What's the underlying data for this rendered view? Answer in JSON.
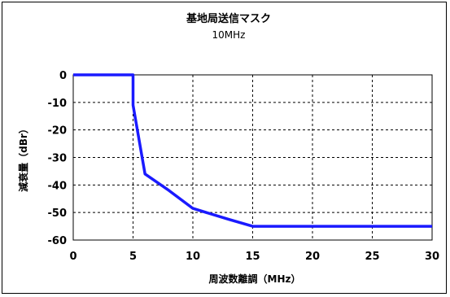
{
  "chart_data": {
    "type": "line",
    "title": "基地局送信マスク",
    "subtitle": "10MHz",
    "xlabel": "周波数離調（MHz）",
    "ylabel": "減衰量（dBr）",
    "xlim": [
      0,
      30
    ],
    "ylim": [
      -60,
      0
    ],
    "xticks": [
      0,
      5,
      10,
      15,
      20,
      25,
      30
    ],
    "yticks": [
      0,
      -10,
      -20,
      -30,
      -40,
      -50,
      -60
    ],
    "grid": true,
    "legend": "none",
    "series": [
      {
        "color": "#1a1aff",
        "x": [
          0,
          5,
          5,
          6,
          8,
          10,
          13,
          15,
          20,
          25,
          30
        ],
        "y": [
          0,
          0,
          -11,
          -36,
          -42,
          -48.5,
          -52.5,
          -55,
          -55,
          -55,
          -55
        ]
      }
    ]
  }
}
